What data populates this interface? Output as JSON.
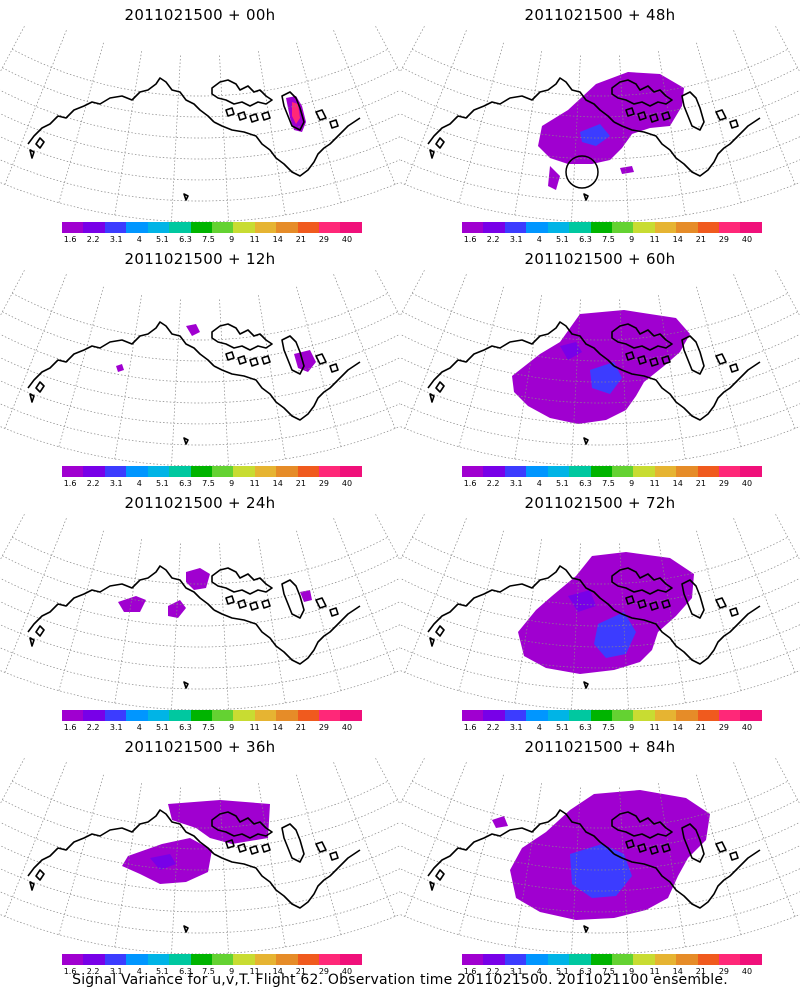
{
  "panels": [
    {
      "title": "2011021500 + 00h",
      "lead": 0
    },
    {
      "title": "2011021500 + 48h",
      "lead": 48
    },
    {
      "title": "2011021500 + 12h",
      "lead": 12
    },
    {
      "title": "2011021500 + 60h",
      "lead": 60
    },
    {
      "title": "2011021500 + 24h",
      "lead": 24
    },
    {
      "title": "2011021500 + 72h",
      "lead": 72
    },
    {
      "title": "2011021500 + 36h",
      "lead": 36
    },
    {
      "title": "2011021500 + 84h",
      "lead": 84
    }
  ],
  "colorbar": {
    "labels": [
      "1.6",
      "2.2",
      "3.1",
      "4",
      "5.1",
      "6.3",
      "7.5",
      "9",
      "11",
      "14",
      "21",
      "29",
      "40"
    ],
    "colors": [
      "#a000d0",
      "#7800e8",
      "#3c3cff",
      "#0096ff",
      "#00b4e6",
      "#00c8a0",
      "#00b400",
      "#64d232",
      "#c8dc32",
      "#e6b432",
      "#e68c28",
      "#f05a1e",
      "#ff2878",
      "#f0107a"
    ]
  },
  "caption": "Signal Variance for u,v,T. Flight 62. Observation time 2011021500. 2011021100 ensemble."
}
